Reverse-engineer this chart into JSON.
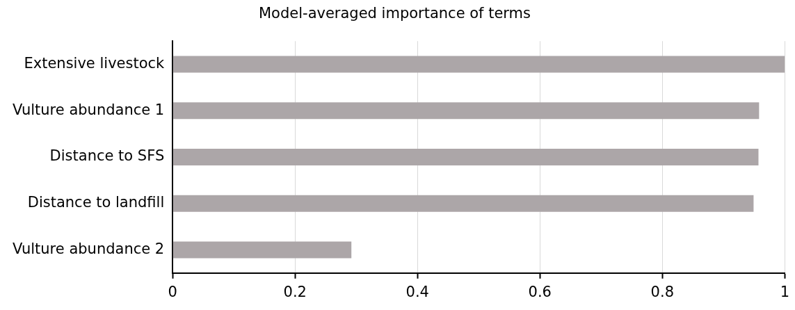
{
  "chart_data": {
    "type": "bar",
    "orientation": "horizontal",
    "title": "Model-averaged importance of terms",
    "categories": [
      "Extensive livestock",
      "Vulture abundance 1",
      "Distance to SFS",
      "Distance to landfill",
      "Vulture abundance 2"
    ],
    "values": [
      1.0,
      0.958,
      0.957,
      0.949,
      0.292
    ],
    "color": "#aca6a8",
    "xlim": [
      0,
      1
    ],
    "xticks": [
      0,
      0.2,
      0.4,
      0.6,
      0.8,
      1
    ],
    "grid": "x"
  }
}
